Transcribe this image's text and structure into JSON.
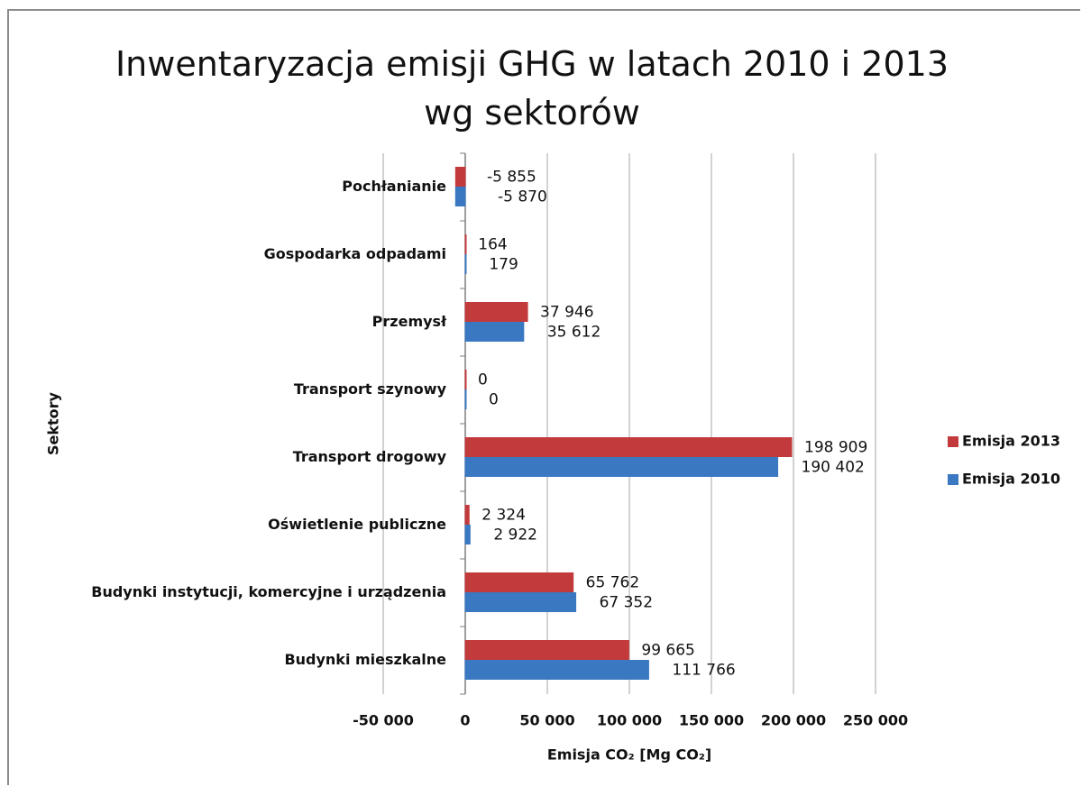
{
  "chart_data": {
    "type": "barh",
    "title": "Inwentaryzacja emisji GHG w latach 2010 i 2013 wg sektorów",
    "xlabel": "Emisja CO₂ [Mg CO₂]",
    "ylabel": "Sektory",
    "categories": [
      "Pochłanianie",
      "Gospodarka odpadami",
      "Przemysł",
      "Transport szynowy",
      "Transport drogowy",
      "Oświetlenie publiczne",
      "Budynki instytucji, komercyjne i urządzenia",
      "Budynki mieszkalne"
    ],
    "series": [
      {
        "name": "Emisja 2013",
        "color": "#c33a3c",
        "values": [
          -5855,
          164,
          37946,
          0,
          198909,
          2324,
          65762,
          99665
        ],
        "value_labels": [
          "-5 855",
          "164",
          "37 946",
          "0",
          "198 909",
          "2 324",
          "65 762",
          "99 665"
        ]
      },
      {
        "name": "Emisja 2010",
        "color": "#3a78c2",
        "values": [
          -5870,
          179,
          35612,
          0,
          190402,
          2922,
          67352,
          111766
        ],
        "value_labels": [
          "-5 870",
          "179",
          "35 612",
          "0",
          "190 402",
          "2 922",
          "67 352",
          "111 766"
        ]
      }
    ],
    "xlim": [
      -50000,
      250000
    ],
    "xticks": [
      {
        "value": -50000,
        "label": "-50 000"
      },
      0,
      {
        "value": 50000,
        "label": "50 000"
      },
      {
        "value": 100000,
        "label": "100 000"
      },
      {
        "value": 150000,
        "label": "150 000"
      },
      {
        "value": 200000,
        "label": "200 000"
      },
      {
        "value": 250000,
        "label": "250 000"
      }
    ],
    "grid": true,
    "legend": "right"
  }
}
